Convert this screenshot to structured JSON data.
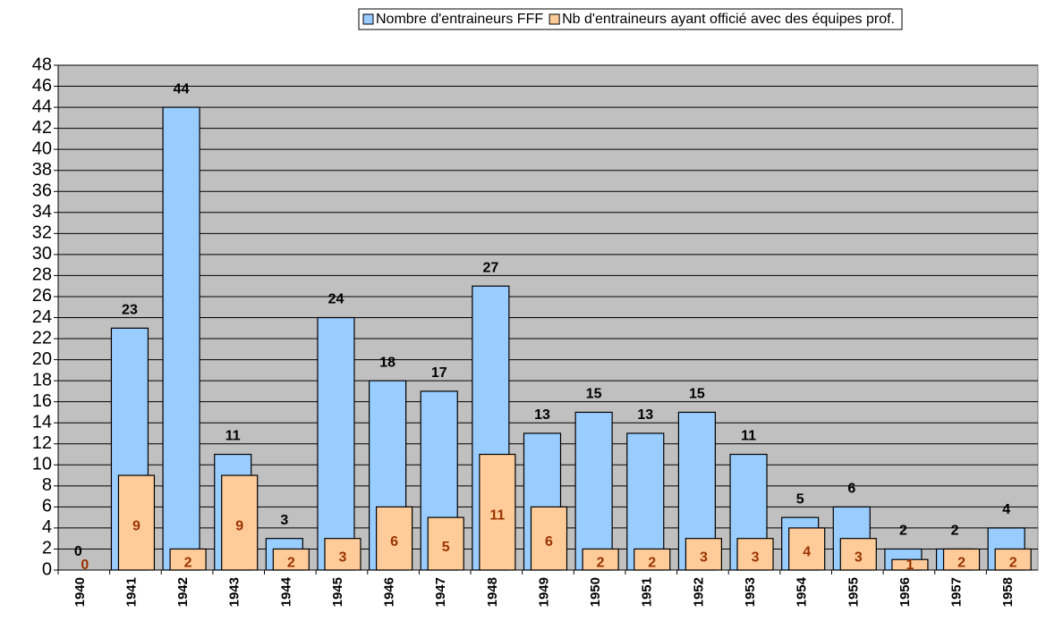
{
  "chart_data": {
    "type": "bar",
    "categories": [
      "1940",
      "1941",
      "1942",
      "1943",
      "1944",
      "1945",
      "1946",
      "1947",
      "1948",
      "1949",
      "1950",
      "1951",
      "1952",
      "1953",
      "1954",
      "1955",
      "1956",
      "1957",
      "1958"
    ],
    "series": [
      {
        "name": "Nombre d'entraineurs FFF",
        "color": "#99ccff",
        "values": [
          0,
          23,
          44,
          11,
          3,
          24,
          18,
          17,
          27,
          13,
          15,
          13,
          15,
          11,
          5,
          6,
          2,
          2,
          4
        ]
      },
      {
        "name": "Nb d'entraineurs ayant officié avec des équipes prof.",
        "color": "#ffcc99",
        "values": [
          0,
          9,
          2,
          9,
          2,
          3,
          6,
          5,
          11,
          6,
          2,
          2,
          3,
          3,
          4,
          3,
          1,
          2,
          2
        ]
      }
    ],
    "ylim": [
      0,
      48
    ],
    "yticks": [
      0,
      2,
      4,
      6,
      8,
      10,
      12,
      14,
      16,
      18,
      20,
      22,
      24,
      26,
      28,
      30,
      32,
      34,
      36,
      38,
      40,
      42,
      44,
      46,
      48
    ],
    "grid": true,
    "plot_background": "#c0c0c0",
    "legend": "top"
  }
}
